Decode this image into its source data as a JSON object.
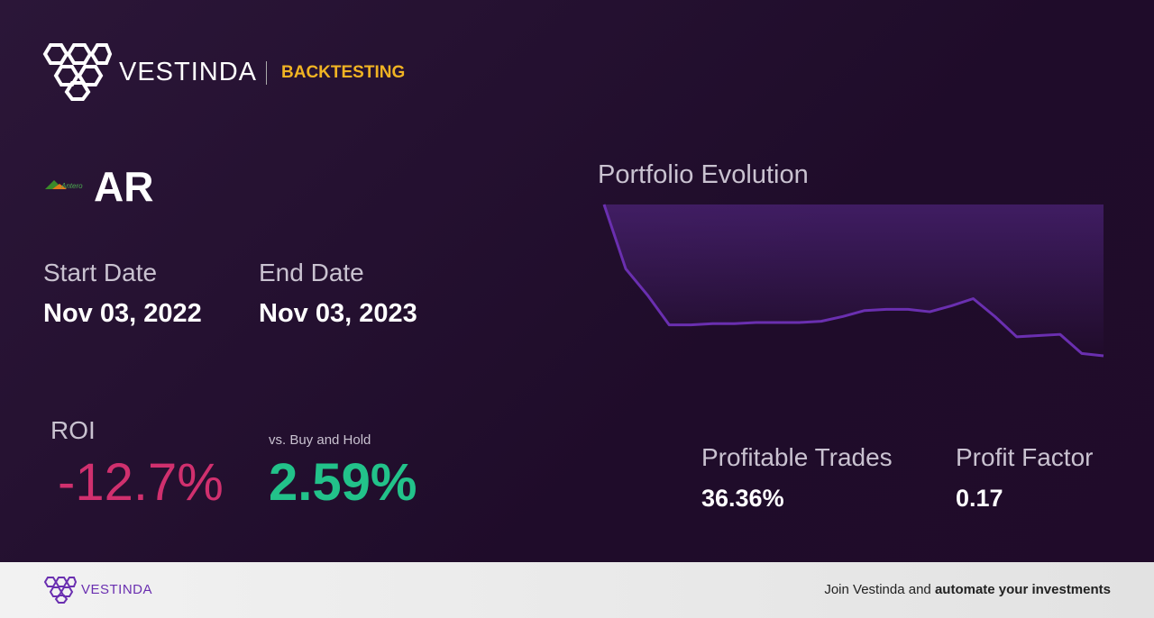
{
  "header": {
    "brand": "VESTINDA",
    "section": "BACKTESTING"
  },
  "asset": {
    "logo_text": "Antero",
    "ticker": "AR"
  },
  "dates": {
    "start_label": "Start Date",
    "start": "Nov 03, 2022",
    "end_label": "End Date",
    "end": "Nov 03, 2023"
  },
  "roi": {
    "label": "ROI",
    "value": "-12.7%",
    "vs_label": "vs. Buy and Hold",
    "vs_value": "2.59%"
  },
  "portfolio": {
    "title": "Portfolio Evolution",
    "values": [
      100,
      94.6,
      92.4,
      89.9,
      89.9,
      90.0,
      90.0,
      90.1,
      90.1,
      90.1,
      90.2,
      90.6,
      91.1,
      91.2,
      91.2,
      91.0,
      91.5,
      92.1,
      90.6,
      88.9,
      89.0,
      89.1,
      87.5,
      87.3
    ],
    "color": "#6a2fb0"
  },
  "stats": {
    "profitable_label": "Profitable Trades",
    "profitable": "36.36%",
    "factor_label": "Profit Factor",
    "factor": "0.17"
  },
  "footer": {
    "brand": "VESTINDA",
    "cta_plain": "Join Vestinda and",
    "cta_bold": "automate your investments"
  }
}
